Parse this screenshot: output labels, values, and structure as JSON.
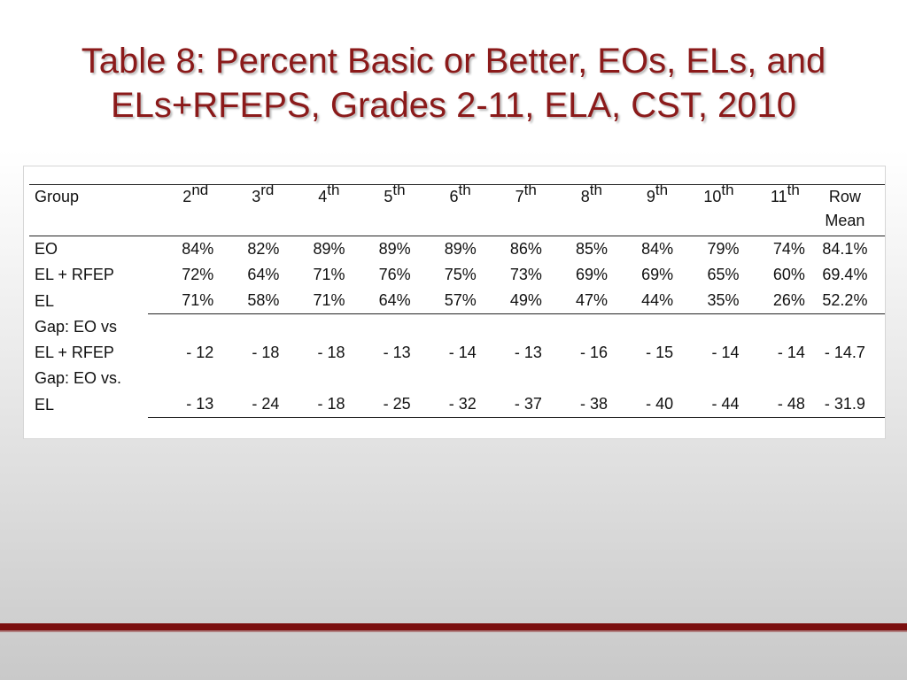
{
  "slide": {
    "title_line1": "Table 8: Percent Basic or Better, EOs, ELs, and",
    "title_line2": "ELs+RFEPS, Grades 2-11, ELA, CST, 2010"
  },
  "table": {
    "group_header": "Group",
    "grades": [
      {
        "num": "2",
        "suffix": "nd"
      },
      {
        "num": "3",
        "suffix": "rd"
      },
      {
        "num": "4",
        "suffix": "th"
      },
      {
        "num": "5",
        "suffix": "th"
      },
      {
        "num": "6",
        "suffix": "th"
      },
      {
        "num": "7",
        "suffix": "th"
      },
      {
        "num": "8",
        "suffix": "th"
      },
      {
        "num": "9",
        "suffix": "th"
      },
      {
        "num": "10",
        "suffix": "th"
      },
      {
        "num": "11",
        "suffix": "th"
      }
    ],
    "mean_header_line1": "Row",
    "mean_header_line2": "Mean",
    "rows": [
      {
        "group": "EO",
        "values": [
          "84%",
          "82%",
          "89%",
          "89%",
          "89%",
          "86%",
          "85%",
          "84%",
          "79%",
          "74%"
        ],
        "mean": "84.1%"
      },
      {
        "group": "EL + RFEP",
        "values": [
          "72%",
          "64%",
          "71%",
          "76%",
          "75%",
          "73%",
          "69%",
          "69%",
          "65%",
          "60%"
        ],
        "mean": "69.4%"
      },
      {
        "group": "EL",
        "values": [
          "71%",
          "58%",
          "71%",
          "64%",
          "57%",
          "49%",
          "47%",
          "44%",
          "35%",
          "26%"
        ],
        "mean": "52.2%"
      }
    ],
    "gap_rows": [
      {
        "group_line1": "Gap: EO vs",
        "group_line2": "EL + RFEP",
        "values": [
          "- 12",
          "- 18",
          "- 18",
          "- 13",
          "- 14",
          "- 13",
          "- 16",
          "- 15",
          "- 14",
          "- 14"
        ],
        "mean": "- 14.7"
      },
      {
        "group_line1": "Gap: EO vs.",
        "group_line2": "EL",
        "values": [
          "- 13",
          "- 24",
          "- 18",
          "- 25",
          "- 32",
          "- 37",
          "- 38",
          "- 40",
          "- 44",
          "- 48"
        ],
        "mean": "- 31.9"
      }
    ]
  },
  "colors": {
    "title": "#8b1a1a",
    "band": "#7a0f0f"
  }
}
